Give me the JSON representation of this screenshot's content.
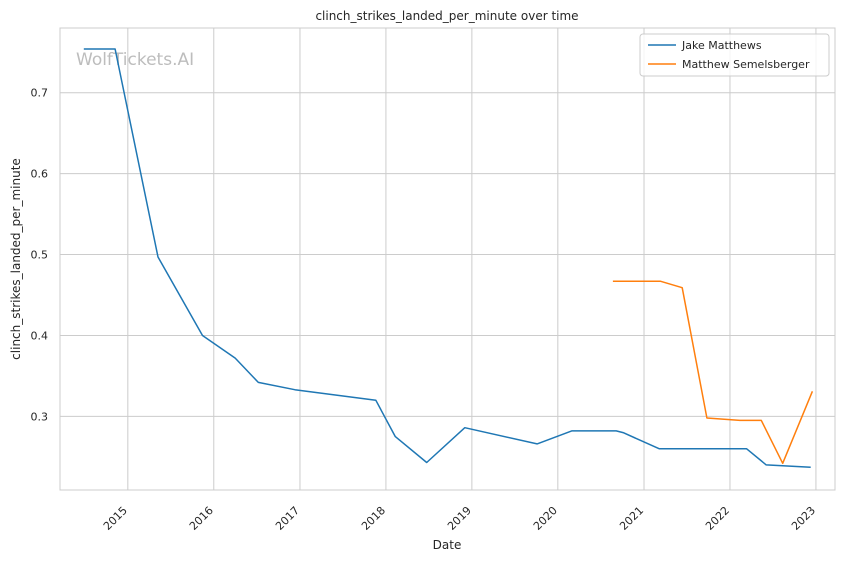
{
  "chart_data": {
    "type": "line",
    "title": "clinch_strikes_landed_per_minute over time",
    "xlabel": "Date",
    "ylabel": "clinch_strikes_landed_per_minute",
    "watermark": "WolfTickets.AI",
    "x_ticks": [
      "2015",
      "2016",
      "2017",
      "2018",
      "2019",
      "2020",
      "2021",
      "2022",
      "2023"
    ],
    "y_ticks": [
      "0.3",
      "0.4",
      "0.5",
      "0.6",
      "0.7"
    ],
    "xlim": [
      "2014-03-19",
      "2023-03-23"
    ],
    "ylim": [
      0.209,
      0.78
    ],
    "grid": true,
    "legend_position": "top-right",
    "series": [
      {
        "name": "Jake Matthews",
        "color": "#1f77b4",
        "points": [
          [
            "2014-06-28",
            0.754
          ],
          [
            "2014-11-08",
            0.754
          ],
          [
            "2015-05-09",
            0.497
          ],
          [
            "2015-11-14",
            0.4
          ],
          [
            "2016-04-01",
            0.372
          ],
          [
            "2016-07-08",
            0.342
          ],
          [
            "2016-12-10",
            0.333
          ],
          [
            "2017-11-19",
            0.32
          ],
          [
            "2018-02-10",
            0.275
          ],
          [
            "2018-06-23",
            0.243
          ],
          [
            "2018-12-02",
            0.286
          ],
          [
            "2019-10-05",
            0.266
          ],
          [
            "2020-02-29",
            0.282
          ],
          [
            "2020-09-05",
            0.282
          ],
          [
            "2020-10-04",
            0.28
          ],
          [
            "2021-03-06",
            0.26
          ],
          [
            "2022-03-12",
            0.26
          ],
          [
            "2022-06-04",
            0.24
          ],
          [
            "2022-12-10",
            0.237
          ]
        ]
      },
      {
        "name": "Matthew Semelsberger",
        "color": "#ff7f0e",
        "points": [
          [
            "2020-08-22",
            0.467
          ],
          [
            "2021-03-13",
            0.467
          ],
          [
            "2021-06-12",
            0.459
          ],
          [
            "2021-09-25",
            0.298
          ],
          [
            "2022-02-12",
            0.295
          ],
          [
            "2022-05-14",
            0.295
          ],
          [
            "2022-08-13",
            0.242
          ],
          [
            "2022-12-17",
            0.331
          ]
        ]
      }
    ]
  }
}
